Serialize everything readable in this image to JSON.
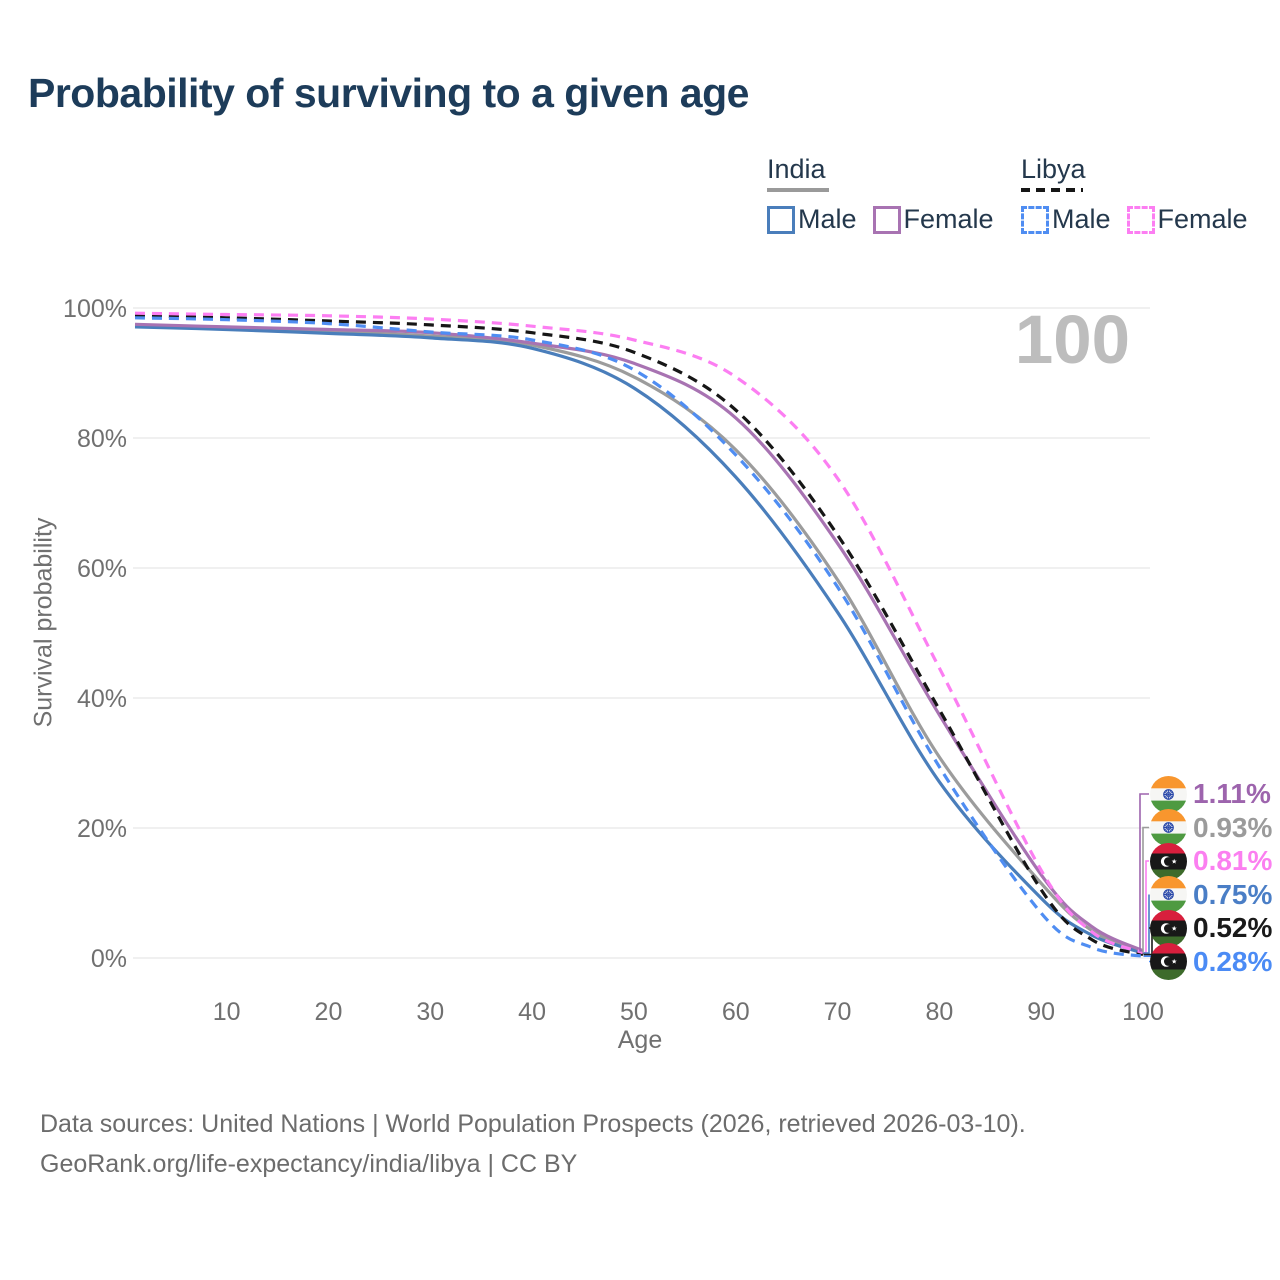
{
  "title": "Probability of surviving to a given age",
  "watermark": "100",
  "legend": {
    "groups": [
      {
        "country": "India",
        "line_style": "solid",
        "underline_color": "#9a9a9a",
        "items": [
          {
            "label": "Male",
            "color": "#4a7ebb"
          },
          {
            "label": "Female",
            "color": "#a873b2"
          }
        ]
      },
      {
        "country": "Libya",
        "line_style": "dashed",
        "underline_color": "#161616",
        "items": [
          {
            "label": "Male",
            "color": "#4f8df2"
          },
          {
            "label": "Female",
            "color": "#fc7ef2"
          }
        ]
      }
    ]
  },
  "chart_data": {
    "type": "line",
    "title": "Probability of surviving to a given age",
    "xlabel": "Age",
    "ylabel": "Survival probability",
    "xlim": [
      1,
      100
    ],
    "ylim": [
      0,
      100
    ],
    "x_ticks": [
      10,
      20,
      30,
      40,
      50,
      60,
      70,
      80,
      90,
      100
    ],
    "y_ticks": [
      0,
      20,
      40,
      60,
      80,
      100
    ],
    "y_tick_suffix": "%",
    "grid": "horizontal",
    "legend_position": "top-right",
    "ages": [
      1,
      10,
      20,
      30,
      40,
      50,
      60,
      70,
      80,
      90,
      95,
      100
    ],
    "series": [
      {
        "name": "india-combined",
        "country": "India",
        "sex": "Both",
        "color": "#9c9c9c",
        "dash": false,
        "values": [
          97.3,
          96.9,
          96.4,
          95.7,
          94.3,
          89.4,
          78.2,
          58.2,
          30.9,
          11.5,
          4.2,
          0.93
        ]
      },
      {
        "name": "india-male",
        "country": "India",
        "sex": "Male",
        "color": "#4a7ebb",
        "dash": false,
        "values": [
          97.1,
          96.7,
          96.1,
          95.4,
          93.8,
          87.7,
          74.0,
          53.2,
          27.1,
          9.2,
          3.5,
          0.75
        ]
      },
      {
        "name": "india-female",
        "country": "India",
        "sex": "Female",
        "color": "#a873b2",
        "dash": false,
        "values": [
          97.5,
          97.1,
          96.7,
          96.2,
          94.6,
          91.5,
          83.1,
          63.8,
          37.4,
          12.8,
          4.8,
          1.11
        ]
      },
      {
        "name": "libya-combined",
        "country": "Libya",
        "sex": "Both",
        "color": "#161616",
        "dash": true,
        "values": [
          98.8,
          98.5,
          98.0,
          97.4,
          96.2,
          93.2,
          84.3,
          65.1,
          38.2,
          10.5,
          2.8,
          0.52
        ]
      },
      {
        "name": "libya-male",
        "country": "Libya",
        "sex": "Male",
        "color": "#4f8df2",
        "dash": true,
        "values": [
          98.5,
          98.2,
          97.6,
          96.3,
          95.1,
          90.5,
          77.4,
          57.1,
          29.4,
          6.9,
          1.6,
          0.28
        ]
      },
      {
        "name": "libya-female",
        "country": "Libya",
        "sex": "Female",
        "color": "#fc7ef2",
        "dash": true,
        "values": [
          99.2,
          99.0,
          98.8,
          98.3,
          97.2,
          95.1,
          89.4,
          73.8,
          44.6,
          13.5,
          4.0,
          0.81
        ]
      }
    ],
    "end_labels": [
      {
        "text": "1.11%",
        "value": 1.11,
        "series": "india-female",
        "flag": "india-flag-icon",
        "color": "#9d64ad"
      },
      {
        "text": "0.93%",
        "value": 0.93,
        "series": "india-combined",
        "flag": "india-flag-icon",
        "color": "#9b9b9b"
      },
      {
        "text": "0.81%",
        "value": 0.81,
        "series": "libya-female",
        "flag": "libya-flag-icon",
        "color": "#fb7ff0"
      },
      {
        "text": "0.75%",
        "value": 0.75,
        "series": "india-male",
        "flag": "india-flag-icon",
        "color": "#4a7ec6"
      },
      {
        "text": "0.52%",
        "value": 0.52,
        "series": "libya-combined",
        "flag": "libya-flag-icon",
        "color": "#1a1a1a"
      },
      {
        "text": "0.28%",
        "value": 0.28,
        "series": "libya-male",
        "flag": "libya-flag-icon",
        "color": "#4b8bf5"
      }
    ]
  },
  "footer": {
    "line1": "Data sources: United Nations | World Population Prospects (2026, retrieved 2026-03-10).",
    "line2": "GeoRank.org/life-expectancy/india/libya | CC BY"
  }
}
